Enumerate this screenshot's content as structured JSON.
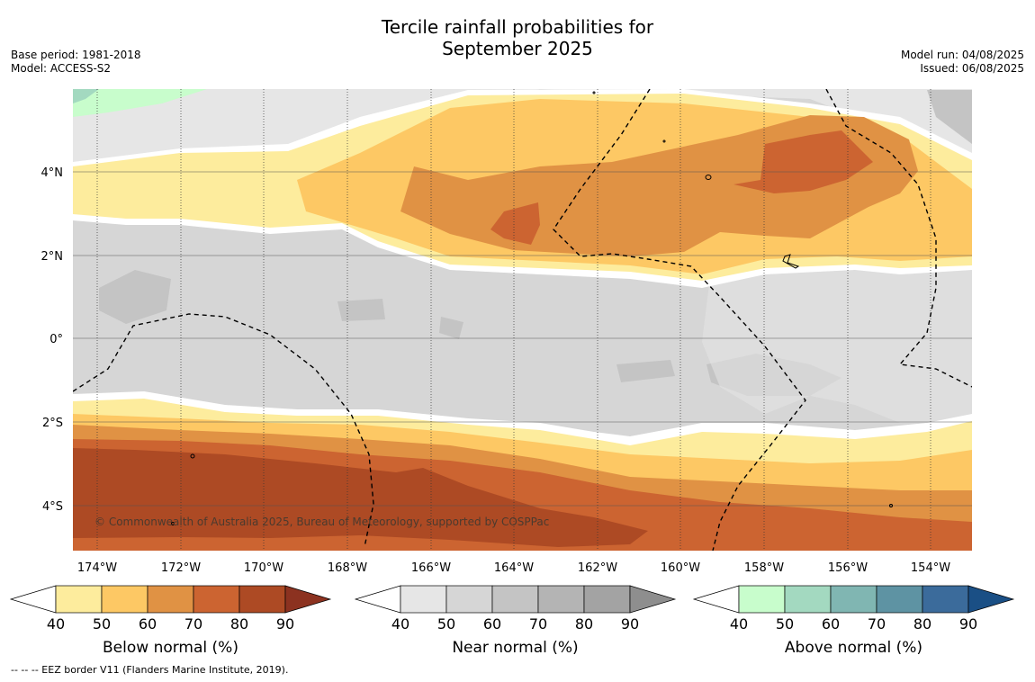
{
  "title_line1": "Tercile rainfall probabilities for",
  "title_line2": "September 2025",
  "meta_left": {
    "base_period": "Base period: 1981-2018",
    "model": "Model: ACCESS-S2"
  },
  "meta_right": {
    "model_run": "Model run: 04/08/2025",
    "issued": "Issued: 06/08/2025"
  },
  "map": {
    "lat_labels": [
      "4°N",
      "2°N",
      "0°",
      "2°S",
      "4°S"
    ],
    "lon_labels": [
      "174°W",
      "172°W",
      "170°W",
      "168°W",
      "166°W",
      "164°W",
      "162°W",
      "160°W",
      "158°W",
      "156°W",
      "154°W"
    ],
    "copyright": "© Commonwealth of Australia 2025, Bureau of Meteorology, supported by COSPPac",
    "eez_border": "EEZ border V11 (Flanders Marine Institute, 2019)."
  },
  "colorbars": [
    {
      "label": "Below normal (%)",
      "ticks": [
        "40",
        "50",
        "60",
        "70",
        "80",
        "90"
      ],
      "colors": [
        "#ffffff",
        "#fdec9d",
        "#fdc864",
        "#e09244",
        "#cc6431",
        "#ad4a24",
        "#8c3220"
      ]
    },
    {
      "label": "Near normal (%)",
      "ticks": [
        "40",
        "50",
        "60",
        "70",
        "80",
        "90"
      ],
      "colors": [
        "#ffffff",
        "#e6e6e6",
        "#d6d6d6",
        "#c4c4c4",
        "#b4b4b4",
        "#a3a3a3",
        "#8e8e8e"
      ]
    },
    {
      "label": "Above normal (%)",
      "ticks": [
        "40",
        "50",
        "60",
        "70",
        "80",
        "90"
      ],
      "colors": [
        "#ffffff",
        "#c8fdcc",
        "#a3d9c0",
        "#80b6b2",
        "#5e93a3",
        "#3b6b9b",
        "#1a4f85"
      ]
    }
  ],
  "footnote": "--  --  -- EEZ border V11 (Flanders Marine Institute, 2019)."
}
